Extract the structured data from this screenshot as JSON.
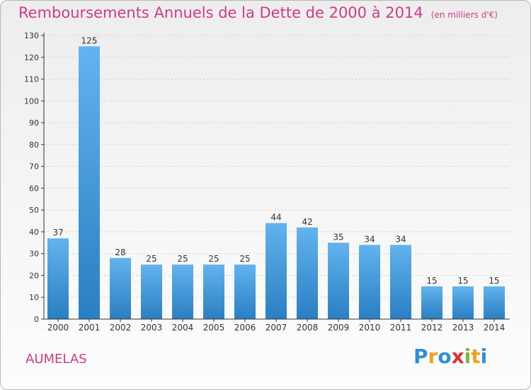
{
  "header": {
    "title": "Remboursements Annuels de la Dette de 2000 à 2014",
    "unit": "(en milliers d'€)"
  },
  "footer": {
    "commune": "AUMELAS",
    "logo_letters": [
      "P",
      "r",
      "o",
      "x",
      "i",
      "t",
      "i"
    ],
    "logo_colors": [
      "#2f8fd8",
      "#f0a020",
      "#2f8fd8",
      "#e03030",
      "#7ab648",
      "#f0a020",
      "#2f8fd8"
    ]
  },
  "colors": {
    "title": "#d23a86",
    "bar_light": "#62b3ee",
    "bar_dark": "#2a7fc2",
    "axis": "#333333",
    "grid": "#d0d0d0"
  },
  "chart_data": {
    "type": "bar",
    "title": "Remboursements Annuels de la Dette de 2000 à 2014",
    "subtitle": "(en milliers d'€)",
    "xlabel": "",
    "ylabel": "",
    "categories": [
      "2000",
      "2001",
      "2002",
      "2003",
      "2004",
      "2005",
      "2006",
      "2007",
      "2008",
      "2009",
      "2010",
      "2011",
      "2012",
      "2013",
      "2014"
    ],
    "values": [
      37,
      125,
      28,
      25,
      25,
      25,
      25,
      44,
      42,
      35,
      34,
      34,
      15,
      15,
      15
    ],
    "ylim": [
      0,
      130
    ],
    "yticks": [
      0,
      10,
      20,
      30,
      40,
      50,
      60,
      70,
      80,
      90,
      100,
      110,
      120,
      130
    ],
    "grid": true
  }
}
